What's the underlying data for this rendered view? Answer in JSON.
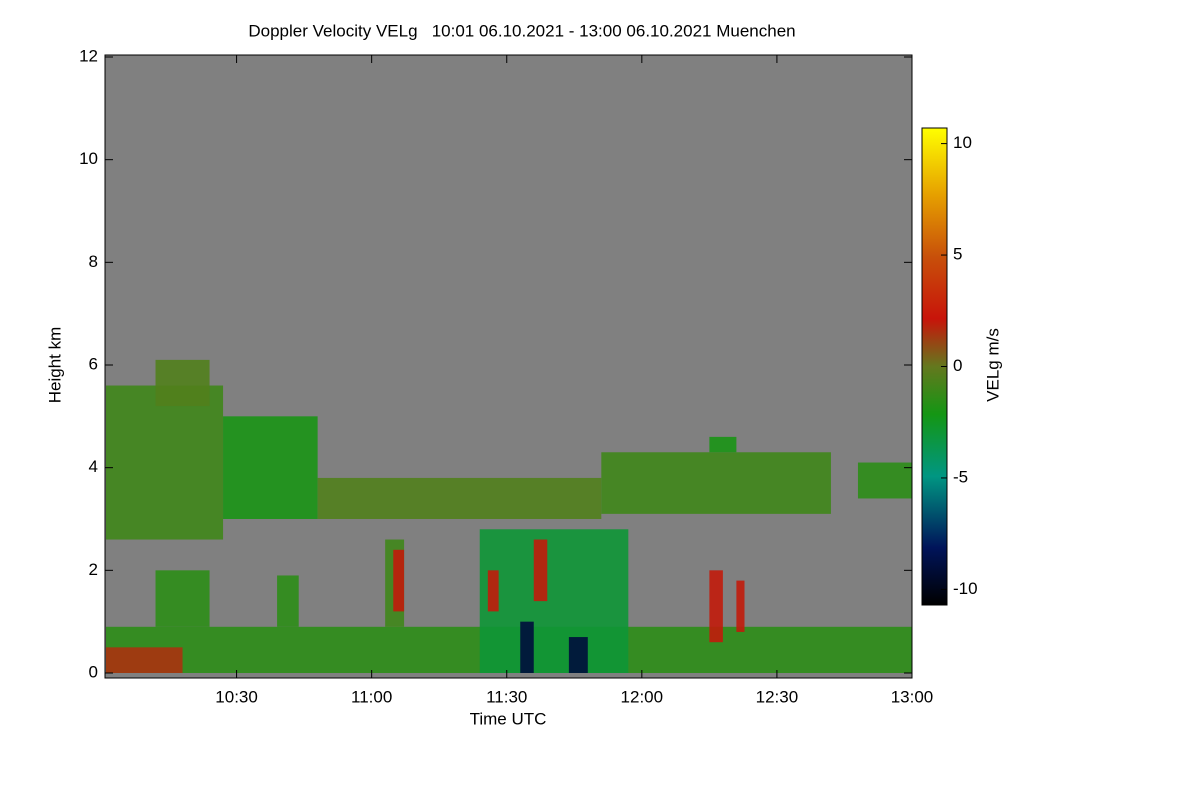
{
  "chart_data": {
    "type": "heatmap",
    "title": "Doppler Velocity VELg   10:01 06.10.2021 - 13:00 06.10.2021 Muenchen",
    "xlabel": "Time UTC",
    "ylabel": "Height km",
    "colorbar_label": "VELg m/s",
    "xlim": [
      10.0167,
      13.0
    ],
    "xticks": [
      {
        "value": 10.5,
        "label": "10:30"
      },
      {
        "value": 11.0,
        "label": "11:00"
      },
      {
        "value": 11.5,
        "label": "11:30"
      },
      {
        "value": 12.0,
        "label": "12:00"
      },
      {
        "value": 12.5,
        "label": "12:30"
      },
      {
        "value": 13.0,
        "label": "13:00"
      }
    ],
    "ylim": [
      0,
      12
    ],
    "yticks": [
      0,
      2,
      4,
      6,
      8,
      10,
      12
    ],
    "clim": [
      -10.7,
      10.7
    ],
    "cticks": [
      -10,
      -5,
      0,
      5,
      10
    ],
    "cells": [
      {
        "t0": 10.0167,
        "t1": 10.45,
        "h0": 2.6,
        "h1": 5.6,
        "v": -1
      },
      {
        "t0": 10.2,
        "t1": 10.4,
        "h0": 5.2,
        "h1": 6.1,
        "v": -0.5
      },
      {
        "t0": 10.45,
        "t1": 10.8,
        "h0": 3.0,
        "h1": 5.0,
        "v": -2
      },
      {
        "t0": 10.8,
        "t1": 11.85,
        "h0": 3.0,
        "h1": 3.8,
        "v": -0.5
      },
      {
        "t0": 11.85,
        "t1": 12.7,
        "h0": 3.1,
        "h1": 4.3,
        "v": -1
      },
      {
        "t0": 12.25,
        "t1": 12.35,
        "h0": 4.3,
        "h1": 4.6,
        "v": -2
      },
      {
        "t0": 12.8,
        "t1": 13.0,
        "h0": 3.4,
        "h1": 4.1,
        "v": -1.5
      },
      {
        "t0": 10.0167,
        "t1": 13.0,
        "h0": 0,
        "h1": 0.9,
        "v": -1.5
      },
      {
        "t0": 10.0167,
        "t1": 10.3,
        "h0": 0,
        "h1": 0.5,
        "v": 1.5
      },
      {
        "t0": 10.2,
        "t1": 10.4,
        "h0": 0.9,
        "h1": 2.0,
        "v": -1.5
      },
      {
        "t0": 10.65,
        "t1": 10.73,
        "h0": 0.9,
        "h1": 1.9,
        "v": -1.5
      },
      {
        "t0": 11.05,
        "t1": 11.12,
        "h0": 0.9,
        "h1": 2.6,
        "v": -1
      },
      {
        "t0": 11.08,
        "t1": 11.12,
        "h0": 1.2,
        "h1": 2.4,
        "v": 2
      },
      {
        "t0": 11.4,
        "t1": 11.95,
        "h0": 0,
        "h1": 2.8,
        "v": -3
      },
      {
        "t0": 11.43,
        "t1": 11.47,
        "h0": 1.2,
        "h1": 2.0,
        "v": 2
      },
      {
        "t0": 11.6,
        "t1": 11.65,
        "h0": 1.4,
        "h1": 2.6,
        "v": 2
      },
      {
        "t0": 11.55,
        "t1": 11.6,
        "h0": 0,
        "h1": 1.0,
        "v": -9
      },
      {
        "t0": 11.73,
        "t1": 11.8,
        "h0": 0,
        "h1": 0.7,
        "v": -9
      },
      {
        "t0": 12.25,
        "t1": 12.3,
        "h0": 0.6,
        "h1": 2.0,
        "v": 2
      },
      {
        "t0": 12.35,
        "t1": 12.38,
        "h0": 0.8,
        "h1": 1.8,
        "v": 2
      }
    ]
  }
}
